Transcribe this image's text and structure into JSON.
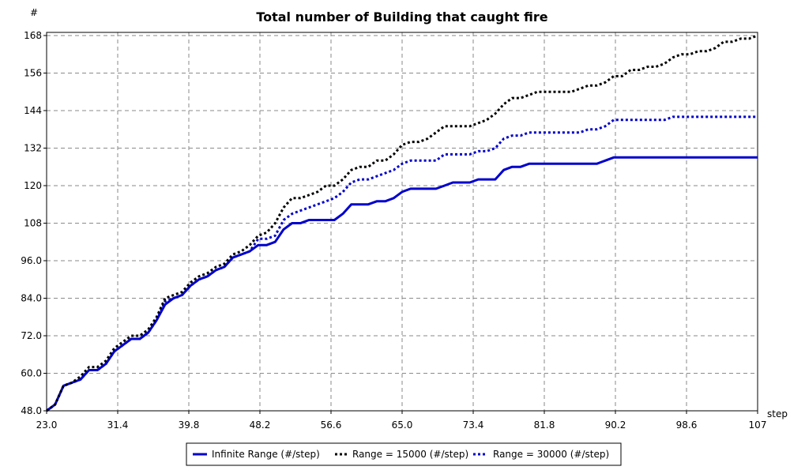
{
  "chart_data": {
    "type": "line",
    "title": "Total number of Building that caught fire",
    "xlabel": "step",
    "ylabel": "#",
    "xlim": [
      23.0,
      107.0
    ],
    "ylim": [
      48.0,
      169.0
    ],
    "x_ticks": [
      "23.0",
      "31.4",
      "39.8",
      "48.2",
      "56.6",
      "65.0",
      "73.4",
      "81.8",
      "90.2",
      "98.6",
      "107"
    ],
    "y_ticks": [
      "48.0",
      "60.0",
      "72.0",
      "84.0",
      "96.0",
      "108",
      "120",
      "132",
      "144",
      "156",
      "168"
    ],
    "grid": true,
    "legend_position": "bottom",
    "series": [
      {
        "name": "Infinite Range (#/step)",
        "color": "#0000cc",
        "style": "solid",
        "points": [
          [
            23,
            48
          ],
          [
            24,
            50
          ],
          [
            25,
            56
          ],
          [
            26,
            57
          ],
          [
            27,
            58
          ],
          [
            28,
            61
          ],
          [
            29,
            61
          ],
          [
            30,
            63
          ],
          [
            31,
            67
          ],
          [
            32,
            69
          ],
          [
            33,
            71
          ],
          [
            34,
            71
          ],
          [
            35,
            73
          ],
          [
            36,
            77
          ],
          [
            37,
            82
          ],
          [
            38,
            84
          ],
          [
            39,
            85
          ],
          [
            40,
            88
          ],
          [
            41,
            90
          ],
          [
            42,
            91
          ],
          [
            43,
            93
          ],
          [
            44,
            94
          ],
          [
            45,
            97
          ],
          [
            46,
            98
          ],
          [
            47,
            99
          ],
          [
            48,
            101
          ],
          [
            49,
            101
          ],
          [
            50,
            102
          ],
          [
            51,
            106
          ],
          [
            52,
            108
          ],
          [
            53,
            108
          ],
          [
            54,
            109
          ],
          [
            55,
            109
          ],
          [
            56,
            109
          ],
          [
            57,
            109
          ],
          [
            58,
            111
          ],
          [
            59,
            114
          ],
          [
            60,
            114
          ],
          [
            61,
            114
          ],
          [
            62,
            115
          ],
          [
            63,
            115
          ],
          [
            64,
            116
          ],
          [
            65,
            118
          ],
          [
            66,
            119
          ],
          [
            67,
            119
          ],
          [
            68,
            119
          ],
          [
            69,
            119
          ],
          [
            70,
            120
          ],
          [
            71,
            121
          ],
          [
            72,
            121
          ],
          [
            73,
            121
          ],
          [
            74,
            122
          ],
          [
            75,
            122
          ],
          [
            76,
            122
          ],
          [
            77,
            125
          ],
          [
            78,
            126
          ],
          [
            79,
            126
          ],
          [
            80,
            127
          ],
          [
            81,
            127
          ],
          [
            82,
            127
          ],
          [
            83,
            127
          ],
          [
            84,
            127
          ],
          [
            85,
            127
          ],
          [
            86,
            127
          ],
          [
            87,
            127
          ],
          [
            88,
            127
          ],
          [
            89,
            128
          ],
          [
            90,
            129
          ],
          [
            91,
            129
          ],
          [
            92,
            129
          ],
          [
            93,
            129
          ],
          [
            94,
            129
          ],
          [
            95,
            129
          ],
          [
            96,
            129
          ],
          [
            97,
            129
          ],
          [
            98,
            129
          ],
          [
            99,
            129
          ],
          [
            100,
            129
          ],
          [
            101,
            129
          ],
          [
            102,
            129
          ],
          [
            103,
            129
          ],
          [
            104,
            129
          ],
          [
            105,
            129
          ],
          [
            106,
            129
          ],
          [
            107,
            129
          ]
        ]
      },
      {
        "name": "Range = 15000 (#/step)",
        "color": "#000000",
        "style": "dotted",
        "points": [
          [
            23,
            48
          ],
          [
            24,
            50
          ],
          [
            25,
            56
          ],
          [
            26,
            57
          ],
          [
            27,
            59
          ],
          [
            28,
            62
          ],
          [
            29,
            62
          ],
          [
            30,
            64
          ],
          [
            31,
            68
          ],
          [
            32,
            70
          ],
          [
            33,
            72
          ],
          [
            34,
            72
          ],
          [
            35,
            74
          ],
          [
            36,
            78
          ],
          [
            37,
            84
          ],
          [
            38,
            85
          ],
          [
            39,
            86
          ],
          [
            40,
            89
          ],
          [
            41,
            91
          ],
          [
            42,
            92
          ],
          [
            43,
            94
          ],
          [
            44,
            95
          ],
          [
            45,
            98
          ],
          [
            46,
            99
          ],
          [
            47,
            101
          ],
          [
            48,
            104
          ],
          [
            49,
            105
          ],
          [
            50,
            108
          ],
          [
            51,
            113
          ],
          [
            52,
            116
          ],
          [
            53,
            116
          ],
          [
            54,
            117
          ],
          [
            55,
            118
          ],
          [
            56,
            120
          ],
          [
            57,
            120
          ],
          [
            58,
            122
          ],
          [
            59,
            125
          ],
          [
            60,
            126
          ],
          [
            61,
            126
          ],
          [
            62,
            128
          ],
          [
            63,
            128
          ],
          [
            64,
            130
          ],
          [
            65,
            133
          ],
          [
            66,
            134
          ],
          [
            67,
            134
          ],
          [
            68,
            135
          ],
          [
            69,
            137
          ],
          [
            70,
            139
          ],
          [
            71,
            139
          ],
          [
            72,
            139
          ],
          [
            73,
            139
          ],
          [
            74,
            140
          ],
          [
            75,
            141
          ],
          [
            76,
            143
          ],
          [
            77,
            146
          ],
          [
            78,
            148
          ],
          [
            79,
            148
          ],
          [
            80,
            149
          ],
          [
            81,
            150
          ],
          [
            82,
            150
          ],
          [
            83,
            150
          ],
          [
            84,
            150
          ],
          [
            85,
            150
          ],
          [
            86,
            151
          ],
          [
            87,
            152
          ],
          [
            88,
            152
          ],
          [
            89,
            153
          ],
          [
            90,
            155
          ],
          [
            91,
            155
          ],
          [
            92,
            157
          ],
          [
            93,
            157
          ],
          [
            94,
            158
          ],
          [
            95,
            158
          ],
          [
            96,
            159
          ],
          [
            97,
            161
          ],
          [
            98,
            162
          ],
          [
            99,
            162
          ],
          [
            100,
            163
          ],
          [
            101,
            163
          ],
          [
            102,
            164
          ],
          [
            103,
            166
          ],
          [
            104,
            166
          ],
          [
            105,
            167
          ],
          [
            106,
            167
          ],
          [
            107,
            168
          ]
        ]
      },
      {
        "name": "Range = 30000 (#/step)",
        "color": "#0000cc",
        "style": "dotted",
        "points": [
          [
            23,
            48
          ],
          [
            24,
            50
          ],
          [
            25,
            56
          ],
          [
            26,
            57
          ],
          [
            27,
            58
          ],
          [
            28,
            61
          ],
          [
            29,
            61
          ],
          [
            30,
            63
          ],
          [
            31,
            67
          ],
          [
            32,
            69
          ],
          [
            33,
            71
          ],
          [
            34,
            71
          ],
          [
            35,
            73
          ],
          [
            36,
            77
          ],
          [
            37,
            83
          ],
          [
            38,
            84
          ],
          [
            39,
            85
          ],
          [
            40,
            88
          ],
          [
            41,
            90
          ],
          [
            42,
            91
          ],
          [
            43,
            93
          ],
          [
            44,
            94
          ],
          [
            45,
            97
          ],
          [
            46,
            98
          ],
          [
            47,
            99
          ],
          [
            48,
            103
          ],
          [
            49,
            103
          ],
          [
            50,
            104
          ],
          [
            51,
            109
          ],
          [
            52,
            111
          ],
          [
            53,
            112
          ],
          [
            54,
            113
          ],
          [
            55,
            114
          ],
          [
            56,
            115
          ],
          [
            57,
            116
          ],
          [
            58,
            118
          ],
          [
            59,
            121
          ],
          [
            60,
            122
          ],
          [
            61,
            122
          ],
          [
            62,
            123
          ],
          [
            63,
            124
          ],
          [
            64,
            125
          ],
          [
            65,
            127
          ],
          [
            66,
            128
          ],
          [
            67,
            128
          ],
          [
            68,
            128
          ],
          [
            69,
            128
          ],
          [
            70,
            130
          ],
          [
            71,
            130
          ],
          [
            72,
            130
          ],
          [
            73,
            130
          ],
          [
            74,
            131
          ],
          [
            75,
            131
          ],
          [
            76,
            132
          ],
          [
            77,
            135
          ],
          [
            78,
            136
          ],
          [
            79,
            136
          ],
          [
            80,
            137
          ],
          [
            81,
            137
          ],
          [
            82,
            137
          ],
          [
            83,
            137
          ],
          [
            84,
            137
          ],
          [
            85,
            137
          ],
          [
            86,
            137
          ],
          [
            87,
            138
          ],
          [
            88,
            138
          ],
          [
            89,
            139
          ],
          [
            90,
            141
          ],
          [
            91,
            141
          ],
          [
            92,
            141
          ],
          [
            93,
            141
          ],
          [
            94,
            141
          ],
          [
            95,
            141
          ],
          [
            96,
            141
          ],
          [
            97,
            142
          ],
          [
            98,
            142
          ],
          [
            99,
            142
          ],
          [
            100,
            142
          ],
          [
            101,
            142
          ],
          [
            102,
            142
          ],
          [
            103,
            142
          ],
          [
            104,
            142
          ],
          [
            105,
            142
          ],
          [
            106,
            142
          ],
          [
            107,
            142
          ]
        ]
      }
    ]
  }
}
